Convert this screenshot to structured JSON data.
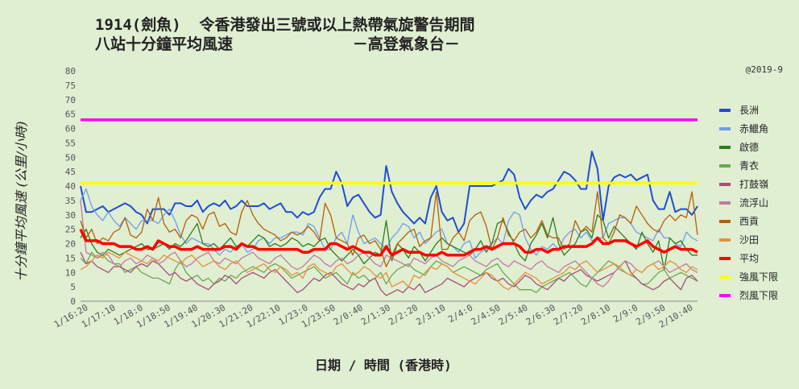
{
  "header": {
    "title_line1": "1914(劍魚)  令香港發出三號或以上熱帶氣旋警告期間",
    "title_line2": "八站十分鐘平均風速             －高登氣象台－",
    "copyright": "@2019-9"
  },
  "chart_data": {
    "type": "line",
    "xlabel": "日期 / 時間 (香港時)",
    "ylabel": "十分鐘平均風速 (公里/小時)",
    "ylim": [
      0,
      80
    ],
    "yticks": [
      0,
      5,
      10,
      15,
      20,
      25,
      30,
      35,
      40,
      45,
      50,
      55,
      60,
      65,
      70,
      75,
      80
    ],
    "grid": false,
    "legend_position": "right",
    "x_tick_labels": [
      "1/16:20",
      "1/17:10",
      "1/18:0",
      "1/18:50",
      "1/19:40",
      "1/20:30",
      "1/21:20",
      "1/22:10",
      "1/23:0",
      "1/23:50",
      "2/0:40",
      "2/1:30",
      "2/2:20",
      "2/3:10",
      "2/4:0",
      "2/4:50",
      "2/5:40",
      "2/6:30",
      "2/7:20",
      "2/8:10",
      "2/9:0",
      "2/9:50",
      "2/10:40"
    ],
    "series": [
      {
        "name": "長洲",
        "color": "#1f4fcc",
        "width": 2,
        "values": [
          40,
          31,
          31,
          32,
          33,
          31,
          32,
          33,
          34,
          33,
          31,
          30,
          27,
          32,
          32,
          32,
          30,
          34,
          34,
          33,
          33,
          35,
          31,
          33,
          34,
          33,
          35,
          32,
          33,
          35,
          33,
          33,
          33,
          34,
          32,
          33,
          34,
          31,
          31,
          29,
          31,
          30,
          31,
          36,
          39,
          39,
          45,
          41,
          33,
          36,
          37,
          34,
          31,
          29,
          30,
          47,
          38,
          34,
          31,
          29,
          27,
          29,
          27,
          36,
          40,
          31,
          28,
          29,
          24,
          27,
          40,
          40,
          40,
          40,
          40,
          41,
          42,
          46,
          44,
          36,
          32,
          35,
          37,
          36,
          38,
          39,
          42,
          45,
          44,
          42,
          39,
          39,
          52,
          46,
          28,
          40,
          43,
          44,
          43,
          44,
          42,
          43,
          44,
          35,
          32,
          32,
          38,
          31,
          32,
          32,
          30,
          33
        ]
      },
      {
        "name": "赤鱲角",
        "color": "#6d9eeb",
        "width": 1.3,
        "values": [
          35,
          39,
          33,
          30,
          28,
          31,
          28,
          26,
          29,
          27,
          25,
          28,
          28,
          28,
          27,
          30,
          32,
          28,
          23,
          20,
          22,
          21,
          20,
          20,
          18,
          16,
          18,
          17,
          19,
          20,
          17,
          18,
          21,
          22,
          20,
          22,
          22,
          23,
          24,
          24,
          23,
          27,
          26,
          22,
          18,
          18,
          22,
          24,
          20,
          30,
          24,
          20,
          21,
          22,
          20,
          18,
          22,
          24,
          27,
          26,
          22,
          24,
          20,
          22,
          24,
          25,
          20,
          19,
          17,
          20,
          21,
          15,
          17,
          18,
          20,
          22,
          20,
          28,
          31,
          30,
          22,
          18,
          16,
          19,
          18,
          20,
          18,
          22,
          24,
          25,
          22,
          24,
          21,
          22,
          22,
          27,
          28,
          29,
          29,
          27,
          24,
          23,
          22,
          21,
          25,
          22,
          22,
          20,
          19,
          24,
          22,
          21
        ]
      },
      {
        "name": "啟德",
        "color": "#2e7d1a",
        "width": 1.3,
        "values": [
          22,
          25,
          20,
          17,
          16,
          18,
          17,
          16,
          17,
          18,
          19,
          20,
          18,
          18,
          19,
          20,
          18,
          20,
          19,
          21,
          24,
          27,
          20,
          19,
          20,
          18,
          20,
          22,
          19,
          20,
          19,
          21,
          23,
          22,
          19,
          20,
          19,
          20,
          22,
          21,
          19,
          20,
          19,
          21,
          22,
          18,
          16,
          14,
          16,
          18,
          16,
          13,
          15,
          17,
          16,
          28,
          14,
          20,
          18,
          15,
          19,
          17,
          14,
          17,
          20,
          22,
          20,
          19,
          18,
          17,
          16,
          18,
          21,
          17,
          20,
          27,
          28,
          24,
          20,
          16,
          14,
          20,
          23,
          27,
          22,
          29,
          20,
          16,
          18,
          20,
          24,
          25,
          22,
          30,
          28,
          22,
          26,
          24,
          22,
          20,
          18,
          24,
          20,
          17,
          21,
          11,
          22,
          20,
          21,
          18,
          16,
          16
        ]
      },
      {
        "name": "青衣",
        "color": "#6aa84f",
        "width": 1.3,
        "values": [
          15,
          13,
          17,
          15,
          16,
          14,
          13,
          13,
          10,
          11,
          12,
          10,
          9,
          8,
          8,
          7,
          6,
          11,
          14,
          10,
          8,
          9,
          7,
          8,
          6,
          8,
          7,
          9,
          8,
          10,
          11,
          12,
          11,
          10,
          12,
          13,
          12,
          10,
          8,
          9,
          10,
          11,
          12,
          10,
          8,
          9,
          10,
          8,
          6,
          10,
          8,
          9,
          7,
          8,
          10,
          6,
          9,
          11,
          12,
          13,
          11,
          10,
          9,
          12,
          14,
          13,
          12,
          10,
          11,
          12,
          11,
          10,
          9,
          11,
          12,
          13,
          10,
          8,
          6,
          4,
          4,
          4,
          3,
          5,
          6,
          7,
          8,
          9,
          10,
          8,
          6,
          5,
          8,
          10,
          12,
          14,
          13,
          11,
          10,
          9,
          8,
          6,
          6,
          8,
          10,
          11,
          8,
          9,
          10,
          9,
          8,
          7
        ]
      },
      {
        "name": "打鼓嶺",
        "color": "#a64d79",
        "width": 1.3,
        "values": [
          17,
          13,
          14,
          12,
          11,
          10,
          12,
          12,
          11,
          10,
          12,
          13,
          12,
          14,
          13,
          11,
          9,
          10,
          8,
          7,
          8,
          6,
          5,
          4,
          6,
          7,
          9,
          8,
          6,
          8,
          9,
          10,
          9,
          8,
          10,
          11,
          9,
          7,
          5,
          3,
          4,
          6,
          8,
          7,
          9,
          10,
          8,
          6,
          5,
          4,
          6,
          5,
          7,
          8,
          4,
          2,
          3,
          4,
          3,
          5,
          4,
          6,
          3,
          4,
          5,
          6,
          8,
          7,
          6,
          5,
          7,
          8,
          9,
          10,
          8,
          7,
          8,
          6,
          5,
          7,
          9,
          8,
          6,
          5,
          4,
          6,
          8,
          7,
          9,
          10,
          11,
          9,
          8,
          7,
          8,
          9,
          10,
          12,
          14,
          10,
          8,
          6,
          5,
          4,
          5,
          7,
          8,
          6,
          4,
          8,
          9,
          7
        ]
      },
      {
        "name": "流浮山",
        "color": "#c27ba0",
        "width": 1.3,
        "values": [
          35,
          17,
          16,
          15,
          17,
          16,
          13,
          12,
          14,
          15,
          13,
          14,
          16,
          15,
          13,
          14,
          16,
          17,
          14,
          12,
          13,
          15,
          16,
          17,
          14,
          13,
          15,
          14,
          13,
          15,
          16,
          17,
          15,
          14,
          13,
          15,
          16,
          14,
          12,
          11,
          12,
          14,
          16,
          15,
          13,
          12,
          14,
          15,
          13,
          14,
          16,
          17,
          15,
          13,
          12,
          16,
          15,
          14,
          13,
          12,
          15,
          14,
          13,
          15,
          16,
          14,
          13,
          12,
          14,
          15,
          16,
          14,
          13,
          12,
          14,
          15,
          13,
          12,
          14,
          13,
          12,
          11,
          13,
          14,
          12,
          11,
          10,
          12,
          13,
          14,
          12,
          10,
          8,
          6,
          5,
          7,
          10,
          12,
          14,
          13,
          11,
          10,
          12,
          13,
          14,
          12,
          10,
          11,
          12,
          13,
          11,
          10
        ]
      },
      {
        "name": "西貢",
        "color": "#b45f06",
        "width": 1.3,
        "values": [
          28,
          22,
          25,
          20,
          22,
          21,
          24,
          25,
          29,
          23,
          22,
          24,
          32,
          28,
          36,
          27,
          24,
          25,
          22,
          28,
          30,
          29,
          25,
          30,
          31,
          26,
          27,
          24,
          23,
          31,
          35,
          30,
          27,
          25,
          24,
          23,
          21,
          22,
          24,
          23,
          24,
          26,
          24,
          21,
          34,
          30,
          22,
          21,
          20,
          16,
          22,
          23,
          20,
          21,
          18,
          12,
          16,
          20,
          22,
          24,
          25,
          19,
          21,
          22,
          38,
          18,
          18,
          22,
          24,
          21,
          28,
          30,
          31,
          26,
          18,
          22,
          29,
          23,
          21,
          24,
          25,
          22,
          24,
          28,
          23,
          22,
          22,
          18,
          20,
          28,
          24,
          26,
          24,
          38,
          22,
          20,
          24,
          30,
          29,
          27,
          33,
          30,
          27,
          25,
          24,
          28,
          30,
          28,
          30,
          29,
          38,
          23
        ]
      },
      {
        "name": "沙田",
        "color": "#e69138",
        "width": 1.3,
        "values": [
          11,
          12,
          14,
          16,
          15,
          17,
          16,
          15,
          17,
          16,
          15,
          14,
          13,
          15,
          14,
          16,
          15,
          14,
          13,
          15,
          16,
          14,
          12,
          13,
          14,
          12,
          11,
          13,
          14,
          12,
          10,
          11,
          12,
          13,
          11,
          10,
          12,
          11,
          9,
          10,
          8,
          12,
          13,
          11,
          10,
          9,
          12,
          13,
          11,
          9,
          10,
          12,
          11,
          9,
          8,
          10,
          5,
          6,
          7,
          5,
          9,
          8,
          10,
          12,
          11,
          13,
          12,
          10,
          9,
          8,
          7,
          6,
          8,
          10,
          9,
          7,
          5,
          4,
          6,
          8,
          10,
          9,
          8,
          6,
          7,
          8,
          9,
          10,
          12,
          11,
          13,
          14,
          12,
          10,
          11,
          12,
          13,
          12,
          10,
          9,
          11,
          10,
          12,
          13,
          11,
          12,
          14,
          13,
          11,
          10,
          12,
          11
        ]
      },
      {
        "name": "平均",
        "color": "#ff0000",
        "width": 3.5,
        "values": [
          25,
          21,
          21,
          21,
          20,
          20,
          20,
          19,
          19,
          19,
          18,
          18,
          19,
          18,
          21,
          20,
          19,
          19,
          18,
          18,
          18,
          19,
          18,
          18,
          18,
          18,
          19,
          19,
          18,
          20,
          19,
          19,
          18,
          18,
          18,
          18,
          18,
          18,
          18,
          18,
          17,
          17,
          18,
          18,
          18,
          20,
          20,
          19,
          18,
          19,
          18,
          17,
          17,
          16,
          16,
          19,
          16,
          17,
          18,
          17,
          17,
          17,
          16,
          16,
          16,
          17,
          16,
          16,
          16,
          16,
          17,
          18,
          18,
          19,
          18,
          19,
          20,
          20,
          20,
          19,
          17,
          17,
          18,
          18,
          17,
          18,
          18,
          19,
          19,
          19,
          19,
          19,
          20,
          22,
          20,
          20,
          21,
          21,
          21,
          20,
          19,
          20,
          21,
          19,
          18,
          17,
          18,
          19,
          18,
          18,
          18,
          17
        ]
      },
      {
        "name": "強風下限",
        "color": "#ffff00",
        "width": 3.5,
        "values": [
          41,
          41
        ]
      },
      {
        "name": "烈風下限",
        "color": "#ff00ff",
        "width": 3.5,
        "values": [
          63,
          63
        ]
      }
    ]
  }
}
